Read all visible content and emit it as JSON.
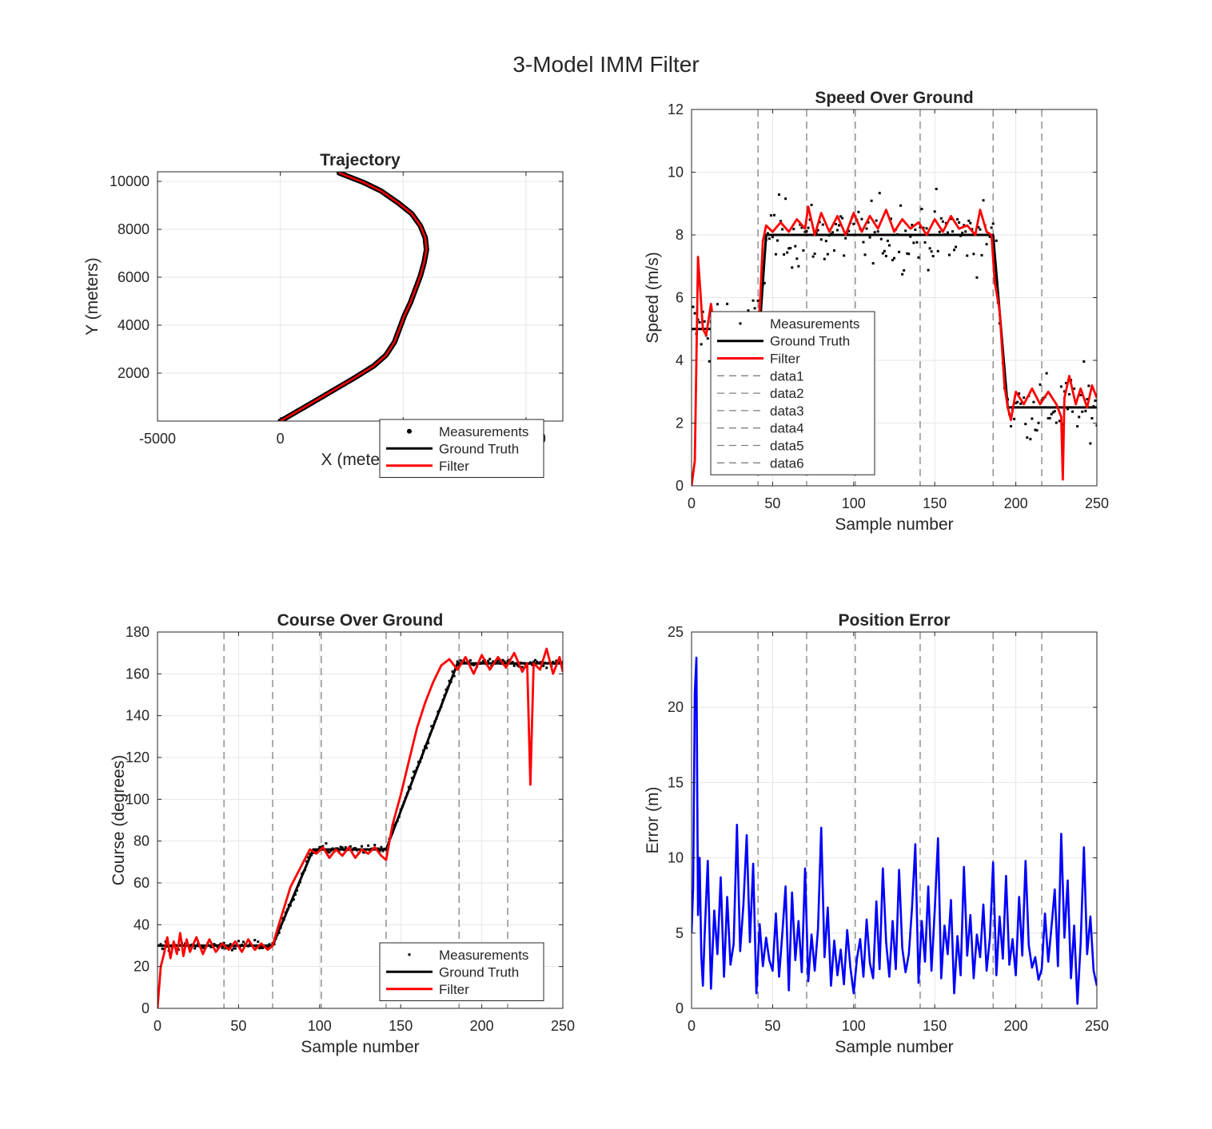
{
  "figure": {
    "title": "3-Model IMM Filter"
  },
  "colors": {
    "measurements": "#000000",
    "truth": "#000000",
    "filter": "#ff0000",
    "error": "#0000ff",
    "grid": "#e6e6e6",
    "dashed": "#808080"
  },
  "chart_data": [
    {
      "id": "trajectory",
      "type": "line",
      "title": "Trajectory",
      "xlabel": "X (meters)",
      "ylabel": "Y (meters)",
      "xlim": [
        -5000,
        11500
      ],
      "ylim": [
        0,
        10400
      ],
      "xticks": [
        -5000,
        0,
        5000,
        10000
      ],
      "xtick_labels": [
        "-5000",
        "0",
        "5000",
        "10000"
      ],
      "yticks": [
        2000,
        4000,
        6000,
        8000,
        10000
      ],
      "ytick_labels": [
        "2000",
        "4000",
        "6000",
        "8000",
        "10000"
      ],
      "grid": true,
      "legend": {
        "position": "bottom-right",
        "entries": [
          "Measurements",
          "Ground Truth",
          "Filter"
        ]
      },
      "series": [
        {
          "name": "Ground Truth",
          "style": "line",
          "x": [
            0,
            1000,
            2000,
            3000,
            3800,
            4300,
            4650,
            4850,
            5050,
            5300,
            5500,
            5700,
            5850,
            5950,
            5900,
            5700,
            5350,
            4800,
            4100,
            3400,
            2400
          ],
          "y": [
            0,
            590,
            1190,
            1790,
            2300,
            2750,
            3300,
            3850,
            4400,
            4950,
            5500,
            6050,
            6600,
            7150,
            7650,
            8150,
            8650,
            9100,
            9600,
            9950,
            10350
          ]
        }
      ]
    },
    {
      "id": "speed",
      "type": "line",
      "title": "Speed Over Ground",
      "xlabel": "Sample number",
      "ylabel": "Speed (m/s)",
      "xlim": [
        0,
        250
      ],
      "ylim": [
        0,
        12
      ],
      "xticks": [
        0,
        50,
        100,
        150,
        200,
        250
      ],
      "xtick_labels": [
        "0",
        "50",
        "100",
        "150",
        "200",
        "250"
      ],
      "yticks": [
        0,
        2,
        4,
        6,
        8,
        10,
        12
      ],
      "ytick_labels": [
        "0",
        "2",
        "4",
        "6",
        "8",
        "10",
        "12"
      ],
      "grid": true,
      "vlines": [
        41,
        71,
        101,
        141,
        186,
        216
      ],
      "legend": {
        "position": "bottom-left",
        "entries": [
          "Measurements",
          "Ground Truth",
          "Filter",
          "data1",
          "data2",
          "data3",
          "data4",
          "data5",
          "data6"
        ]
      },
      "series": [
        {
          "name": "Ground Truth",
          "style": "line",
          "x": [
            0,
            42,
            46,
            184,
            186,
            195,
            250
          ],
          "y": [
            5,
            5,
            8,
            8,
            8,
            2.5,
            2.5
          ]
        },
        {
          "name": "Filter",
          "style": "line",
          "x": [
            0,
            2,
            4,
            7,
            9,
            12,
            14,
            18,
            22,
            26,
            30,
            34,
            38,
            42,
            44,
            46,
            50,
            55,
            60,
            65,
            70,
            72,
            76,
            80,
            85,
            90,
            95,
            100,
            105,
            110,
            115,
            120,
            125,
            130,
            135,
            140,
            145,
            150,
            155,
            160,
            165,
            170,
            175,
            178,
            182,
            185,
            187,
            190,
            193,
            195,
            197,
            200,
            205,
            210,
            215,
            220,
            225,
            228,
            229,
            230,
            233,
            237,
            240,
            244,
            247,
            250
          ],
          "y": [
            0,
            0.8,
            7.3,
            5.0,
            4.8,
            5.8,
            5.0,
            5.4,
            5.0,
            5.5,
            4.9,
            5.5,
            5.2,
            5.6,
            7.8,
            8.3,
            8.1,
            8.4,
            8.1,
            8.5,
            8.2,
            8.9,
            8.0,
            8.7,
            8.1,
            8.6,
            8.0,
            8.7,
            8.1,
            8.6,
            8.2,
            8.8,
            8.1,
            8.5,
            8.2,
            8.4,
            8.0,
            8.5,
            8.1,
            8.6,
            8.2,
            8.3,
            8.0,
            8.8,
            8.1,
            8.0,
            6.5,
            5.6,
            3.2,
            2.5,
            2.1,
            3.0,
            2.6,
            3.1,
            2.6,
            3.0,
            2.6,
            2.2,
            0.2,
            2.8,
            3.5,
            2.6,
            3.1,
            2.5,
            3.2,
            2.8
          ]
        }
      ]
    },
    {
      "id": "course",
      "type": "line",
      "title": "Course Over Ground",
      "xlabel": "Sample number",
      "ylabel": "Course (degrees)",
      "xlim": [
        0,
        250
      ],
      "ylim": [
        0,
        180
      ],
      "xticks": [
        0,
        50,
        100,
        150,
        200,
        250
      ],
      "xtick_labels": [
        "0",
        "50",
        "100",
        "150",
        "200",
        "250"
      ],
      "yticks": [
        0,
        20,
        40,
        60,
        80,
        100,
        120,
        140,
        160,
        180
      ],
      "ytick_labels": [
        "0",
        "20",
        "40",
        "60",
        "80",
        "100",
        "120",
        "140",
        "160",
        "180"
      ],
      "grid": true,
      "vlines": [
        41,
        71,
        101,
        141,
        186,
        216
      ],
      "legend": {
        "position": "bottom-right",
        "entries": [
          "Measurements",
          "Ground Truth",
          "Filter"
        ]
      },
      "series": [
        {
          "name": "Ground Truth",
          "style": "line",
          "x": [
            0,
            71,
            96,
            141,
            185,
            250
          ],
          "y": [
            30,
            30,
            76,
            76,
            165,
            165
          ]
        },
        {
          "name": "Filter",
          "style": "line",
          "x": [
            0,
            2,
            4,
            6,
            8,
            10,
            12,
            14,
            16,
            18,
            20,
            24,
            28,
            32,
            36,
            40,
            44,
            48,
            52,
            56,
            60,
            64,
            68,
            71,
            74,
            78,
            82,
            86,
            90,
            94,
            98,
            102,
            106,
            110,
            114,
            118,
            122,
            126,
            130,
            134,
            138,
            141,
            145,
            150,
            155,
            160,
            165,
            170,
            175,
            180,
            185,
            190,
            195,
            200,
            205,
            210,
            215,
            220,
            225,
            228,
            230,
            232,
            236,
            240,
            244,
            248,
            250
          ],
          "y": [
            0,
            20,
            26,
            34,
            24,
            32,
            26,
            36,
            25,
            33,
            27,
            34,
            26,
            33,
            27,
            31,
            28,
            32,
            27,
            33,
            28,
            31,
            28,
            30,
            38,
            48,
            58,
            64,
            70,
            76,
            74,
            77,
            72,
            76,
            73,
            77,
            72,
            76,
            74,
            77,
            73,
            71,
            88,
            102,
            118,
            134,
            146,
            156,
            164,
            167,
            162,
            168,
            160,
            169,
            162,
            168,
            163,
            170,
            161,
            165,
            107,
            165,
            162,
            172,
            160,
            168,
            161
          ]
        }
      ]
    },
    {
      "id": "position_error",
      "type": "line",
      "title": "Position Error",
      "xlabel": "Sample number",
      "ylabel": "Error (m)",
      "xlim": [
        0,
        250
      ],
      "ylim": [
        0,
        25
      ],
      "xticks": [
        0,
        50,
        100,
        150,
        200,
        250
      ],
      "xtick_labels": [
        "0",
        "50",
        "100",
        "150",
        "200",
        "250"
      ],
      "yticks": [
        0,
        5,
        10,
        15,
        20,
        25
      ],
      "ytick_labels": [
        "0",
        "5",
        "10",
        "15",
        "20",
        "25"
      ],
      "grid": true,
      "vlines": [
        41,
        71,
        101,
        141,
        186,
        216
      ],
      "series": [
        {
          "name": "Error",
          "style": "line",
          "x": [
            0,
            1,
            2,
            3,
            4,
            5,
            6,
            7,
            8,
            10,
            12,
            14,
            16,
            18,
            20,
            22,
            24,
            26,
            28,
            30,
            32,
            34,
            36,
            38,
            40,
            42,
            44,
            46,
            48,
            50,
            52,
            54,
            56,
            58,
            60,
            62,
            64,
            66,
            68,
            70,
            72,
            74,
            76,
            78,
            80,
            82,
            84,
            86,
            88,
            90,
            92,
            94,
            96,
            98,
            100,
            102,
            104,
            106,
            108,
            110,
            112,
            114,
            116,
            118,
            120,
            122,
            124,
            126,
            128,
            130,
            132,
            134,
            136,
            138,
            140,
            142,
            144,
            146,
            148,
            150,
            152,
            154,
            156,
            158,
            160,
            162,
            164,
            166,
            168,
            170,
            172,
            174,
            176,
            178,
            180,
            182,
            184,
            186,
            188,
            190,
            192,
            194,
            196,
            198,
            200,
            202,
            204,
            206,
            208,
            210,
            212,
            214,
            216,
            218,
            220,
            222,
            224,
            226,
            228,
            230,
            232,
            234,
            236,
            238,
            240,
            242,
            244,
            246,
            248,
            250
          ],
          "y": [
            5,
            8,
            21,
            23.3,
            6.2,
            10,
            3.5,
            1.5,
            4.6,
            9.8,
            1.3,
            6.5,
            3.6,
            8.7,
            2.1,
            7.4,
            2.9,
            4.3,
            12.2,
            3.8,
            6.9,
            11.5,
            4.4,
            9.6,
            1.0,
            5.6,
            2.8,
            4.7,
            3.2,
            2.5,
            6.3,
            2.1,
            5.0,
            8.1,
            1.2,
            7.7,
            3.2,
            5.8,
            2.4,
            9.3,
            1.8,
            4.9,
            2.5,
            5.3,
            12.0,
            3.4,
            6.7,
            1.5,
            4.5,
            2.2,
            3.9,
            1.6,
            5.2,
            2.7,
            1.0,
            3.3,
            4.6,
            2.1,
            5.9,
            3.0,
            2.0,
            7.1,
            2.6,
            9.3,
            4.4,
            2.1,
            5.8,
            2.6,
            9.2,
            4.0,
            2.4,
            3.6,
            6.7,
            10.9,
            1.7,
            5.8,
            3.1,
            8.1,
            2.5,
            6.5,
            11.3,
            2.0,
            5.5,
            3.6,
            7.2,
            1.0,
            4.8,
            2.2,
            9.4,
            3.5,
            6.2,
            2.0,
            4.9,
            3.4,
            6.9,
            2.5,
            4.7,
            9.7,
            2.2,
            6.1,
            3.3,
            8.8,
            2.9,
            4.6,
            2.2,
            7.4,
            3.5,
            9.8,
            4.2,
            2.7,
            3.4,
            1.9,
            2.6,
            6.3,
            3.1,
            5.4,
            7.9,
            2.8,
            11.6,
            4.7,
            8.5,
            2.0,
            5.5,
            0.3,
            4.3,
            10.7,
            3.6,
            6.1,
            2.5,
            1.5
          ]
        }
      ]
    }
  ]
}
